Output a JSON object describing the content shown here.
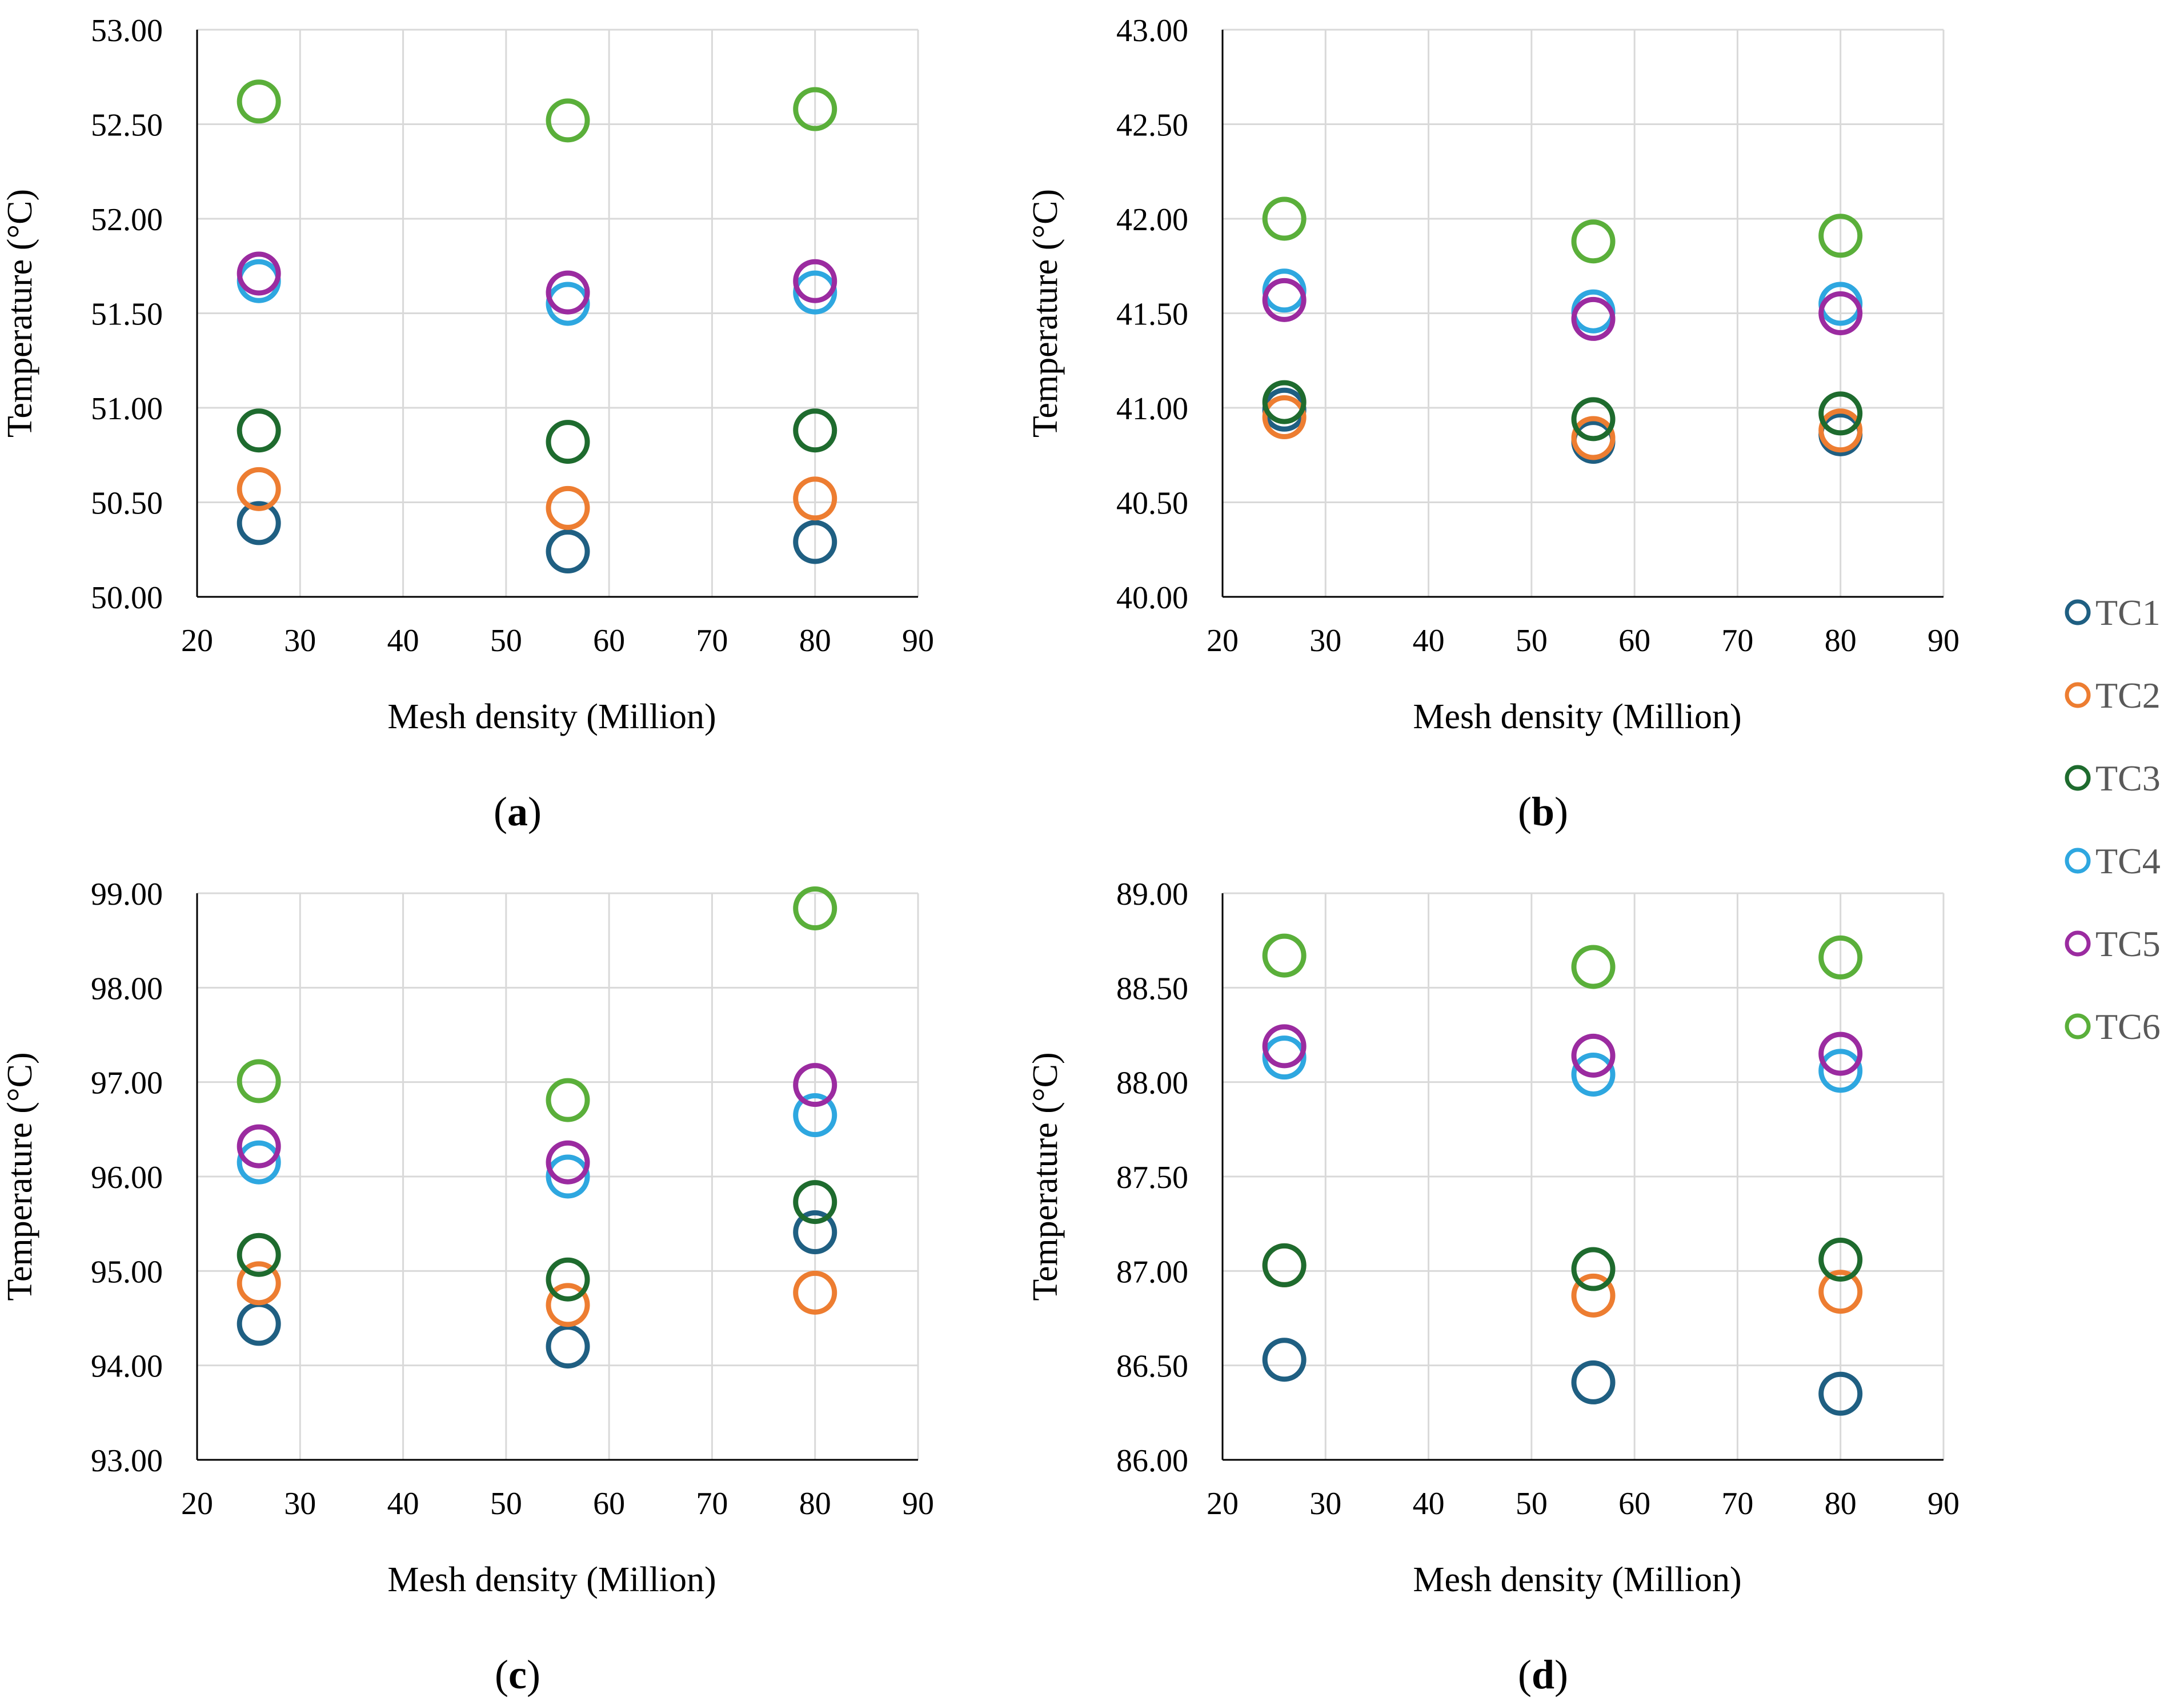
{
  "figure": {
    "legend": [
      {
        "name": "TC1",
        "color": "#1f5f82"
      },
      {
        "name": "TC2",
        "color": "#ed7d31"
      },
      {
        "name": "TC3",
        "color": "#1e6b2e"
      },
      {
        "name": "TC4",
        "color": "#2ea7e0"
      },
      {
        "name": "TC5",
        "color": "#9b2ba0"
      },
      {
        "name": "TC6",
        "color": "#5aaf3a"
      }
    ]
  },
  "chart_data": [
    {
      "type": "scatter",
      "panel_label": "(a)",
      "title": "",
      "xlabel": "Mesh density (Million)",
      "ylabel": "Temperature (°C)",
      "xlim": [
        20,
        90
      ],
      "ylim": [
        50.0,
        53.0
      ],
      "x_ticks": [
        "20",
        "30",
        "40",
        "50",
        "60",
        "70",
        "80",
        "90"
      ],
      "y_ticks": [
        "50.00",
        "50.50",
        "51.00",
        "51.50",
        "52.00",
        "52.50",
        "53.00"
      ],
      "x": [
        26,
        56,
        80
      ],
      "series": [
        {
          "name": "TC1",
          "values": [
            50.39,
            50.24,
            50.29
          ]
        },
        {
          "name": "TC2",
          "values": [
            50.57,
            50.47,
            50.52
          ]
        },
        {
          "name": "TC3",
          "values": [
            50.88,
            50.82,
            50.88
          ]
        },
        {
          "name": "TC4",
          "values": [
            51.67,
            51.55,
            51.61
          ]
        },
        {
          "name": "TC5",
          "values": [
            51.71,
            51.61,
            51.67
          ]
        },
        {
          "name": "TC6",
          "values": [
            52.62,
            52.52,
            52.58
          ]
        }
      ]
    },
    {
      "type": "scatter",
      "panel_label": "(b)",
      "title": "",
      "xlabel": "Mesh density (Million)",
      "ylabel": "Temperature (°C)",
      "xlim": [
        20,
        90
      ],
      "ylim": [
        40.0,
        43.0
      ],
      "x_ticks": [
        "20",
        "30",
        "40",
        "50",
        "60",
        "70",
        "80",
        "90"
      ],
      "y_ticks": [
        "40.00",
        "40.50",
        "41.00",
        "41.50",
        "42.00",
        "42.50",
        "43.00"
      ],
      "x": [
        26,
        56,
        80
      ],
      "series": [
        {
          "name": "TC1",
          "values": [
            40.99,
            40.82,
            40.86
          ]
        },
        {
          "name": "TC2",
          "values": [
            40.95,
            40.84,
            40.88
          ]
        },
        {
          "name": "TC3",
          "values": [
            41.03,
            40.94,
            40.97
          ]
        },
        {
          "name": "TC4",
          "values": [
            41.62,
            41.51,
            41.55
          ]
        },
        {
          "name": "TC5",
          "values": [
            41.57,
            41.47,
            41.5
          ]
        },
        {
          "name": "TC6",
          "values": [
            42.0,
            41.88,
            41.91
          ]
        }
      ]
    },
    {
      "type": "scatter",
      "panel_label": "(c)",
      "title": "",
      "xlabel": "Mesh density (Million)",
      "ylabel": "Temperature (°C)",
      "xlim": [
        20,
        90
      ],
      "ylim": [
        93.0,
        99.0
      ],
      "x_ticks": [
        "20",
        "30",
        "40",
        "50",
        "60",
        "70",
        "80",
        "90"
      ],
      "y_ticks": [
        "93.00",
        "94.00",
        "95.00",
        "96.00",
        "97.00",
        "98.00",
        "99.00"
      ],
      "x": [
        26,
        56,
        80
      ],
      "series": [
        {
          "name": "TC1",
          "values": [
            94.44,
            94.2,
            95.41
          ]
        },
        {
          "name": "TC2",
          "values": [
            94.87,
            94.64,
            94.77
          ]
        },
        {
          "name": "TC3",
          "values": [
            95.17,
            94.91,
            95.73
          ]
        },
        {
          "name": "TC4",
          "values": [
            96.15,
            96.0,
            96.65
          ]
        },
        {
          "name": "TC5",
          "values": [
            96.32,
            96.15,
            96.97
          ]
        },
        {
          "name": "TC6",
          "values": [
            97.01,
            96.81,
            98.84
          ]
        }
      ]
    },
    {
      "type": "scatter",
      "panel_label": "(d)",
      "title": "",
      "xlabel": "Mesh density (Million)",
      "ylabel": "Temperature (°C)",
      "xlim": [
        20,
        90
      ],
      "ylim": [
        86.0,
        89.0
      ],
      "x_ticks": [
        "20",
        "30",
        "40",
        "50",
        "60",
        "70",
        "80",
        "90"
      ],
      "y_ticks": [
        "86.00",
        "86.50",
        "87.00",
        "87.50",
        "88.00",
        "88.50",
        "89.00"
      ],
      "x": [
        26,
        56,
        80
      ],
      "series": [
        {
          "name": "TC1",
          "values": [
            86.53,
            86.41,
            86.35
          ]
        },
        {
          "name": "TC2",
          "values": [
            87.03,
            86.87,
            86.89
          ]
        },
        {
          "name": "TC3",
          "values": [
            87.03,
            87.01,
            87.06
          ]
        },
        {
          "name": "TC4",
          "values": [
            88.13,
            88.04,
            88.06
          ]
        },
        {
          "name": "TC5",
          "values": [
            88.19,
            88.14,
            88.15
          ]
        },
        {
          "name": "TC6",
          "values": [
            88.67,
            88.61,
            88.66
          ]
        }
      ]
    }
  ]
}
